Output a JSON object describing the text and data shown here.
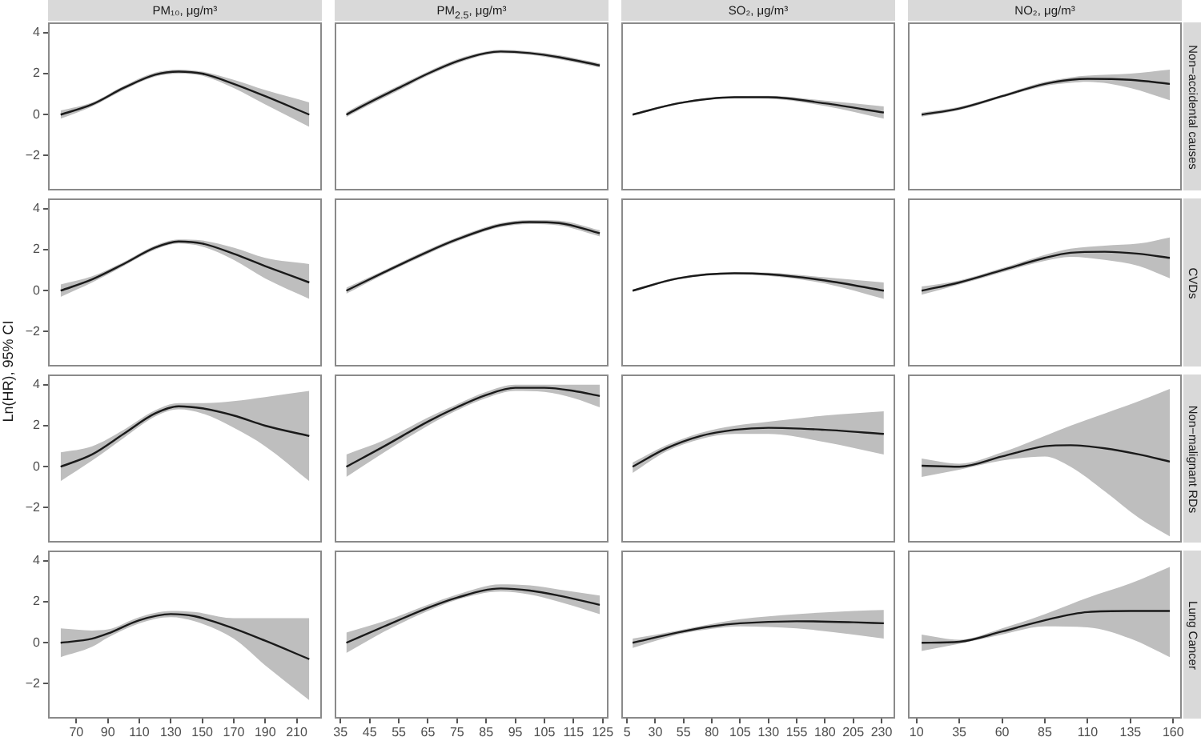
{
  "chart_data": [
    {
      "type": "line",
      "title": "PM₁₀, μg/m³",
      "xlim": [
        52,
        226
      ],
      "xticks": [
        70,
        90,
        110,
        130,
        150,
        170,
        190,
        210
      ],
      "ylim": [
        -3.7,
        4.5
      ],
      "yticks": [
        -2,
        0,
        2,
        4
      ],
      "tick_labels": "y",
      "series": [
        {
          "color": "#1a1a1a",
          "x": [
            60,
            80,
            100,
            120,
            135,
            150,
            170,
            190,
            218
          ],
          "values": [
            0,
            0.5,
            1.3,
            1.95,
            2.1,
            2.0,
            1.5,
            0.9,
            0
          ],
          "lower": [
            -0.2,
            0.4,
            1.2,
            1.85,
            2.0,
            1.9,
            1.3,
            0.5,
            -0.6
          ],
          "upper": [
            0.2,
            0.6,
            1.4,
            2.05,
            2.2,
            2.1,
            1.7,
            1.2,
            0.6
          ]
        }
      ]
    },
    {
      "type": "line",
      "title": "PM$_{2.5}$, μg/m³",
      "xlim": [
        33,
        127
      ],
      "xticks": [
        35,
        45,
        55,
        65,
        75,
        85,
        95,
        105,
        115,
        125
      ],
      "ylim": [
        -3.7,
        4.5
      ],
      "yticks": [
        -2,
        0,
        2,
        4
      ],
      "tick_labels": false,
      "series": [
        {
          "color": "#1a1a1a",
          "x": [
            37,
            45,
            55,
            65,
            75,
            85,
            90,
            100,
            110,
            124
          ],
          "values": [
            0,
            0.6,
            1.3,
            2.0,
            2.6,
            3.0,
            3.08,
            3.0,
            2.8,
            2.4
          ],
          "lower": [
            -0.12,
            0.48,
            1.18,
            1.9,
            2.5,
            2.92,
            3.0,
            2.92,
            2.7,
            2.3
          ],
          "upper": [
            0.12,
            0.72,
            1.42,
            2.1,
            2.7,
            3.08,
            3.16,
            3.08,
            2.9,
            2.5
          ]
        }
      ]
    },
    {
      "type": "line",
      "title": "SO₂, μg/m³",
      "xlim": [
        0,
        242
      ],
      "xticks": [
        5,
        30,
        55,
        80,
        105,
        130,
        155,
        180,
        205,
        230
      ],
      "ylim": [
        -3.7,
        4.5
      ],
      "yticks": [
        -2,
        0,
        2,
        4
      ],
      "tick_labels": false,
      "series": [
        {
          "color": "#1a1a1a",
          "x": [
            10,
            50,
            100,
            130,
            180,
            232
          ],
          "values": [
            0,
            0.55,
            0.85,
            0.85,
            0.55,
            0.1
          ],
          "lower": [
            -0.05,
            0.5,
            0.8,
            0.78,
            0.42,
            -0.2
          ],
          "upper": [
            0.05,
            0.6,
            0.9,
            0.92,
            0.68,
            0.4
          ]
        }
      ]
    },
    {
      "type": "line",
      "title": "NO₂, μg/m³",
      "y2label": "Non−accidental causes",
      "xlim": [
        5,
        165
      ],
      "xticks": [
        10,
        35,
        60,
        85,
        110,
        135,
        160
      ],
      "ylim": [
        -3.7,
        4.5
      ],
      "yticks": [
        -2,
        0,
        2,
        4
      ],
      "tick_labels": false,
      "series": [
        {
          "color": "#1a1a1a",
          "x": [
            13,
            35,
            60,
            85,
            100,
            110,
            135,
            158
          ],
          "values": [
            0,
            0.3,
            0.9,
            1.5,
            1.7,
            1.75,
            1.7,
            1.5
          ],
          "lower": [
            -0.1,
            0.22,
            0.83,
            1.4,
            1.55,
            1.6,
            1.3,
            0.7
          ],
          "upper": [
            0.1,
            0.38,
            0.97,
            1.6,
            1.82,
            1.9,
            2.0,
            2.2
          ]
        }
      ]
    },
    {
      "type": "line",
      "ylabel": "Ln(HR), 95% CI",
      "xlim": [
        52,
        226
      ],
      "xticks": [
        70,
        90,
        110,
        130,
        150,
        170,
        190,
        210
      ],
      "ylim": [
        -3.7,
        4.5
      ],
      "yticks": [
        -2,
        0,
        2,
        4
      ],
      "tick_labels": "y",
      "series": [
        {
          "color": "#1a1a1a",
          "x": [
            60,
            80,
            100,
            120,
            135,
            150,
            170,
            190,
            218
          ],
          "values": [
            0,
            0.55,
            1.3,
            2.1,
            2.4,
            2.3,
            1.8,
            1.2,
            0.4
          ],
          "lower": [
            -0.3,
            0.4,
            1.2,
            2.0,
            2.3,
            2.15,
            1.5,
            0.6,
            -0.4
          ],
          "upper": [
            0.3,
            0.7,
            1.4,
            2.2,
            2.5,
            2.45,
            2.1,
            1.6,
            1.3
          ]
        }
      ]
    },
    {
      "type": "line",
      "xlim": [
        33,
        127
      ],
      "xticks": [
        35,
        45,
        55,
        65,
        75,
        85,
        95,
        105,
        115,
        125
      ],
      "ylim": [
        -3.7,
        4.5
      ],
      "yticks": [
        -2,
        0,
        2,
        4
      ],
      "tick_labels": false,
      "series": [
        {
          "color": "#1a1a1a",
          "x": [
            37,
            50,
            65,
            75,
            90,
            100,
            110,
            124
          ],
          "values": [
            0,
            0.9,
            1.9,
            2.5,
            3.2,
            3.35,
            3.3,
            2.8
          ],
          "lower": [
            -0.15,
            0.8,
            1.8,
            2.4,
            3.1,
            3.25,
            3.18,
            2.65
          ],
          "upper": [
            0.15,
            1.0,
            2.0,
            2.6,
            3.3,
            3.45,
            3.42,
            2.95
          ]
        }
      ]
    },
    {
      "type": "line",
      "xlim": [
        0,
        242
      ],
      "xticks": [
        5,
        30,
        55,
        80,
        105,
        130,
        155,
        180,
        205,
        230
      ],
      "ylim": [
        -3.7,
        4.5
      ],
      "yticks": [
        -2,
        0,
        2,
        4
      ],
      "tick_labels": false,
      "series": [
        {
          "color": "#1a1a1a",
          "x": [
            10,
            50,
            100,
            130,
            180,
            232
          ],
          "values": [
            0,
            0.6,
            0.85,
            0.8,
            0.5,
            0
          ],
          "lower": [
            -0.05,
            0.55,
            0.8,
            0.72,
            0.35,
            -0.4
          ],
          "upper": [
            0.05,
            0.65,
            0.9,
            0.88,
            0.65,
            0.4
          ]
        }
      ]
    },
    {
      "type": "line",
      "y2label": "CVDs",
      "xlim": [
        5,
        165
      ],
      "xticks": [
        10,
        35,
        60,
        85,
        110,
        135,
        160
      ],
      "ylim": [
        -3.7,
        4.5
      ],
      "yticks": [
        -2,
        0,
        2,
        4
      ],
      "tick_labels": false,
      "series": [
        {
          "color": "#1a1a1a",
          "x": [
            13,
            35,
            60,
            85,
            100,
            120,
            140,
            158
          ],
          "values": [
            0,
            0.4,
            1.0,
            1.6,
            1.85,
            1.9,
            1.8,
            1.6
          ],
          "lower": [
            -0.2,
            0.3,
            0.9,
            1.45,
            1.65,
            1.5,
            1.2,
            0.6
          ],
          "upper": [
            0.2,
            0.5,
            1.1,
            1.75,
            2.05,
            2.2,
            2.3,
            2.6
          ]
        }
      ]
    },
    {
      "type": "line",
      "xlim": [
        52,
        226
      ],
      "xticks": [
        70,
        90,
        110,
        130,
        150,
        170,
        190,
        210
      ],
      "ylim": [
        -3.7,
        4.5
      ],
      "yticks": [
        -2,
        0,
        2,
        4
      ],
      "tick_labels": "y",
      "series": [
        {
          "color": "#1a1a1a",
          "x": [
            60,
            80,
            100,
            120,
            135,
            150,
            170,
            190,
            218
          ],
          "values": [
            0,
            0.6,
            1.6,
            2.6,
            2.95,
            2.85,
            2.5,
            2.0,
            1.5
          ],
          "lower": [
            -0.7,
            0.3,
            1.4,
            2.45,
            2.8,
            2.6,
            1.9,
            1.0,
            -0.7
          ],
          "upper": [
            0.7,
            1.0,
            1.8,
            2.75,
            3.1,
            3.1,
            3.2,
            3.4,
            3.7
          ]
        }
      ]
    },
    {
      "type": "line",
      "xlim": [
        33,
        127
      ],
      "xticks": [
        35,
        45,
        55,
        65,
        75,
        85,
        95,
        105,
        115,
        125
      ],
      "ylim": [
        -3.7,
        4.5
      ],
      "yticks": [
        -2,
        0,
        2,
        4
      ],
      "tick_labels": false,
      "series": [
        {
          "color": "#1a1a1a",
          "x": [
            37,
            50,
            65,
            75,
            85,
            95,
            105,
            115,
            124
          ],
          "values": [
            0,
            1.0,
            2.2,
            2.9,
            3.5,
            3.85,
            3.85,
            3.7,
            3.45
          ],
          "lower": [
            -0.5,
            0.7,
            2.0,
            2.75,
            3.35,
            3.7,
            3.65,
            3.35,
            2.9
          ],
          "upper": [
            0.6,
            1.3,
            2.4,
            3.05,
            3.65,
            4.0,
            4.0,
            4.0,
            4.0
          ]
        }
      ]
    },
    {
      "type": "line",
      "xlim": [
        0,
        242
      ],
      "xticks": [
        5,
        30,
        55,
        80,
        105,
        130,
        155,
        180,
        205,
        230
      ],
      "ylim": [
        -3.7,
        4.5
      ],
      "yticks": [
        -2,
        0,
        2,
        4
      ],
      "tick_labels": false,
      "series": [
        {
          "color": "#1a1a1a",
          "x": [
            10,
            40,
            70,
            100,
            130,
            180,
            232
          ],
          "values": [
            0,
            0.9,
            1.5,
            1.8,
            1.9,
            1.8,
            1.6
          ],
          "lower": [
            -0.3,
            0.75,
            1.35,
            1.6,
            1.6,
            1.2,
            0.6
          ],
          "upper": [
            0.2,
            1.05,
            1.65,
            2.0,
            2.2,
            2.5,
            2.7
          ]
        }
      ]
    },
    {
      "type": "line",
      "y2label": "Non−malignant RDs",
      "xlim": [
        5,
        165
      ],
      "xticks": [
        10,
        35,
        60,
        85,
        110,
        135,
        160
      ],
      "ylim": [
        -3.7,
        4.5
      ],
      "yticks": [
        -2,
        0,
        2,
        4
      ],
      "tick_labels": false,
      "series": [
        {
          "color": "#1a1a1a",
          "x": [
            13,
            35,
            60,
            85,
            100,
            120,
            140,
            158
          ],
          "values": [
            0.05,
            0,
            0.5,
            1.0,
            1.05,
            0.9,
            0.6,
            0.25
          ],
          "lower": [
            -0.5,
            -0.15,
            0.3,
            0.5,
            0,
            -1.2,
            -2.5,
            -3.4
          ],
          "upper": [
            0.4,
            0.15,
            0.7,
            1.5,
            2.0,
            2.6,
            3.2,
            3.8
          ]
        }
      ]
    },
    {
      "type": "line",
      "xlim": [
        52,
        226
      ],
      "xticks": [
        70,
        90,
        110,
        130,
        150,
        170,
        190,
        210
      ],
      "ylim": [
        -3.7,
        4.5
      ],
      "yticks": [
        -2,
        0,
        2,
        4
      ],
      "series": [
        {
          "color": "#1a1a1a",
          "x": [
            60,
            80,
            90,
            110,
            130,
            145,
            170,
            190,
            218
          ],
          "values": [
            0,
            0.2,
            0.45,
            1.1,
            1.4,
            1.3,
            0.7,
            0.1,
            -0.8
          ],
          "lower": [
            -0.7,
            -0.2,
            0.25,
            0.95,
            1.25,
            1.05,
            0.2,
            -1.1,
            -2.8
          ],
          "upper": [
            0.7,
            0.6,
            0.65,
            1.25,
            1.55,
            1.5,
            1.2,
            1.2,
            1.2
          ]
        }
      ]
    },
    {
      "type": "line",
      "xlim": [
        33,
        127
      ],
      "xticks": [
        35,
        45,
        55,
        65,
        75,
        85,
        95,
        105,
        115,
        125
      ],
      "ylim": [
        -3.7,
        4.5
      ],
      "yticks": [
        -2,
        0,
        2,
        4
      ],
      "tick_labels": "x",
      "series": [
        {
          "color": "#1a1a1a",
          "x": [
            37,
            50,
            65,
            75,
            90,
            100,
            110,
            124
          ],
          "values": [
            0,
            0.8,
            1.7,
            2.2,
            2.65,
            2.55,
            2.3,
            1.85
          ],
          "lower": [
            -0.5,
            0.55,
            1.55,
            2.1,
            2.5,
            2.35,
            2.0,
            1.4
          ],
          "upper": [
            0.5,
            1.05,
            1.85,
            2.35,
            2.85,
            2.8,
            2.6,
            2.3
          ]
        }
      ]
    },
    {
      "type": "line",
      "xlim": [
        0,
        242
      ],
      "xticks": [
        5,
        30,
        55,
        80,
        105,
        130,
        155,
        180,
        205,
        230
      ],
      "ylim": [
        -3.7,
        4.5
      ],
      "yticks": [
        -2,
        0,
        2,
        4
      ],
      "tick_labels": "x",
      "series": [
        {
          "color": "#1a1a1a",
          "x": [
            10,
            50,
            80,
            105,
            155,
            205,
            232
          ],
          "values": [
            0,
            0.5,
            0.8,
            0.95,
            1.05,
            1.0,
            0.95
          ],
          "lower": [
            -0.25,
            0.4,
            0.68,
            0.8,
            0.7,
            0.4,
            0.2
          ],
          "upper": [
            0.2,
            0.6,
            0.92,
            1.15,
            1.4,
            1.55,
            1.6
          ]
        }
      ]
    },
    {
      "type": "line",
      "y2label": "Lung Cancer",
      "xlim": [
        5,
        165
      ],
      "xticks": [
        10,
        35,
        60,
        85,
        110,
        135,
        160
      ],
      "ylim": [
        -3.7,
        4.5
      ],
      "yticks": [
        -2,
        0,
        2,
        4
      ],
      "tick_labels": "x",
      "series": [
        {
          "color": "#1a1a1a",
          "x": [
            13,
            35,
            60,
            85,
            110,
            135,
            158
          ],
          "values": [
            0,
            0.05,
            0.55,
            1.1,
            1.5,
            1.55,
            1.55
          ],
          "lower": [
            -0.4,
            -0.05,
            0.4,
            0.8,
            0.75,
            0.2,
            -0.7
          ],
          "upper": [
            0.4,
            0.15,
            0.7,
            1.4,
            2.2,
            2.9,
            3.7
          ]
        }
      ]
    }
  ]
}
